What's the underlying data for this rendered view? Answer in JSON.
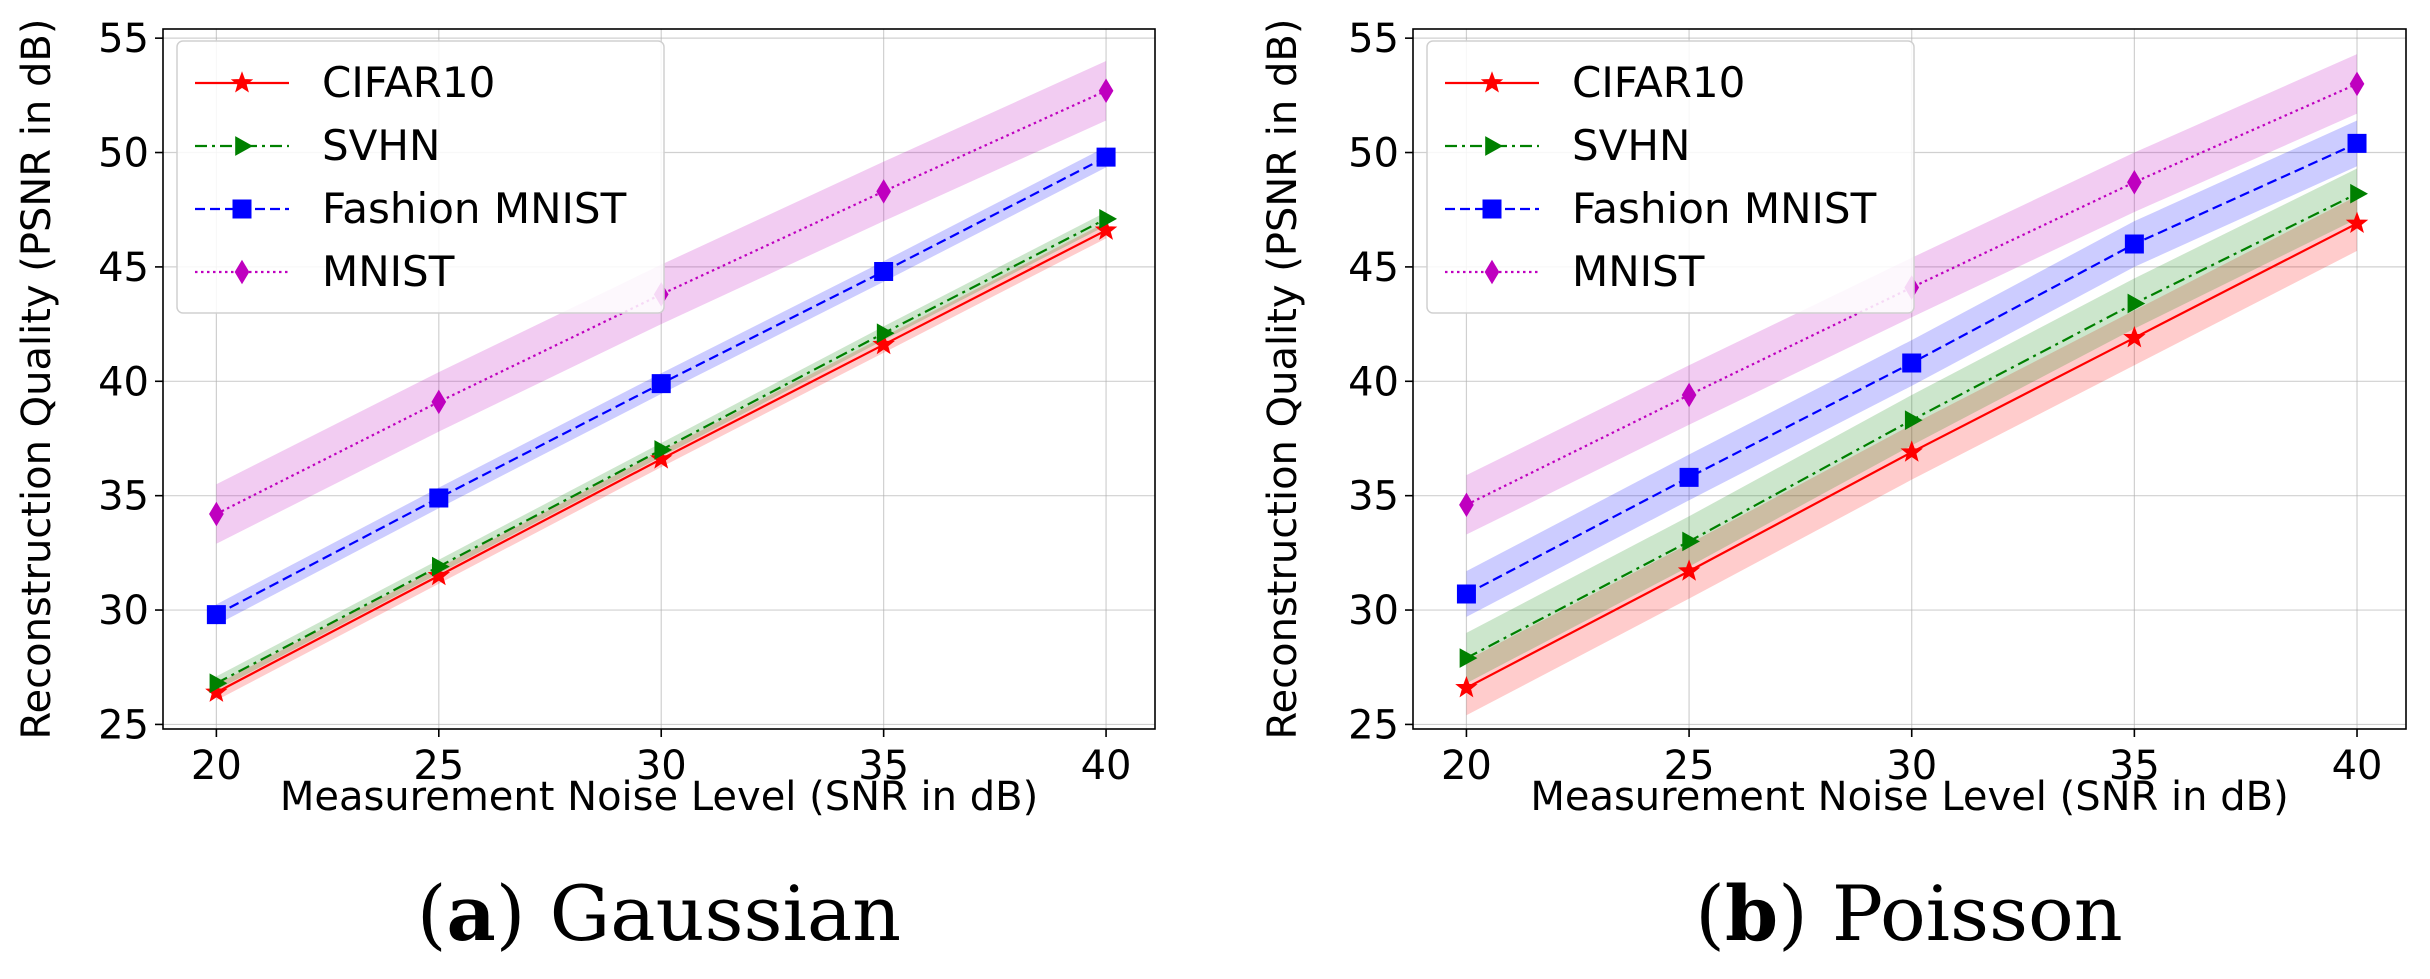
{
  "chart_data": [
    {
      "type": "line",
      "caption_prefix": "(",
      "caption_letter": "a",
      "caption_suffix": ")",
      "caption_text": "Gaussian",
      "xlabel": "Measurement Noise Level (SNR in dB)",
      "ylabel": "Reconstruction Quality (PSNR in dB)",
      "x": [
        20,
        25,
        30,
        35,
        40
      ],
      "xlim": [
        18.8,
        41.1
      ],
      "ylim": [
        24.8,
        55.4
      ],
      "xticks": [
        20,
        25,
        30,
        35,
        40
      ],
      "yticks": [
        25,
        30,
        35,
        40,
        45,
        50,
        55
      ],
      "grid": true,
      "legend_position": "top-left",
      "series": [
        {
          "name": "CIFAR10",
          "color": "#ff0000",
          "marker": "star",
          "dash": "solid",
          "values": [
            26.4,
            31.5,
            36.6,
            41.6,
            46.6
          ],
          "band": 0.35
        },
        {
          "name": "SVHN",
          "color": "#008000",
          "marker": "triangle-right",
          "dash": "dashdot",
          "values": [
            26.8,
            31.9,
            37.0,
            42.1,
            47.1
          ],
          "band": 0.3
        },
        {
          "name": "Fashion MNIST",
          "color": "#0000ff",
          "marker": "square",
          "dash": "dashed",
          "values": [
            29.8,
            34.9,
            39.9,
            44.8,
            49.8
          ],
          "band": 0.45
        },
        {
          "name": "MNIST",
          "color": "#bf00bf",
          "marker": "diamond",
          "dash": "dotted",
          "values": [
            34.2,
            39.1,
            43.8,
            48.3,
            52.7
          ],
          "band": 1.3
        }
      ]
    },
    {
      "type": "line",
      "caption_prefix": "(",
      "caption_letter": "b",
      "caption_suffix": ")",
      "caption_text": "Poisson",
      "xlabel": "Measurement Noise Level (SNR in dB)",
      "ylabel": "Reconstruction Quality (PSNR in dB)",
      "x": [
        20,
        25,
        30,
        35,
        40
      ],
      "xlim": [
        18.8,
        41.1
      ],
      "ylim": [
        24.8,
        55.4
      ],
      "xticks": [
        20,
        25,
        30,
        35,
        40
      ],
      "yticks": [
        25,
        30,
        35,
        40,
        45,
        50,
        55
      ],
      "grid": true,
      "legend_position": "top-left",
      "series": [
        {
          "name": "CIFAR10",
          "color": "#ff0000",
          "marker": "star",
          "dash": "solid",
          "values": [
            26.6,
            31.7,
            36.9,
            41.9,
            46.9
          ],
          "band": 1.2
        },
        {
          "name": "SVHN",
          "color": "#008000",
          "marker": "triangle-right",
          "dash": "dashdot",
          "values": [
            27.9,
            33.0,
            38.3,
            43.4,
            48.2
          ],
          "band": 1.1
        },
        {
          "name": "Fashion MNIST",
          "color": "#0000ff",
          "marker": "square",
          "dash": "dashed",
          "values": [
            30.7,
            35.8,
            40.8,
            46.0,
            50.4
          ],
          "band": 1.0
        },
        {
          "name": "MNIST",
          "color": "#bf00bf",
          "marker": "diamond",
          "dash": "dotted",
          "values": [
            34.6,
            39.4,
            44.1,
            48.7,
            53.0
          ],
          "band": 1.3
        }
      ]
    }
  ]
}
